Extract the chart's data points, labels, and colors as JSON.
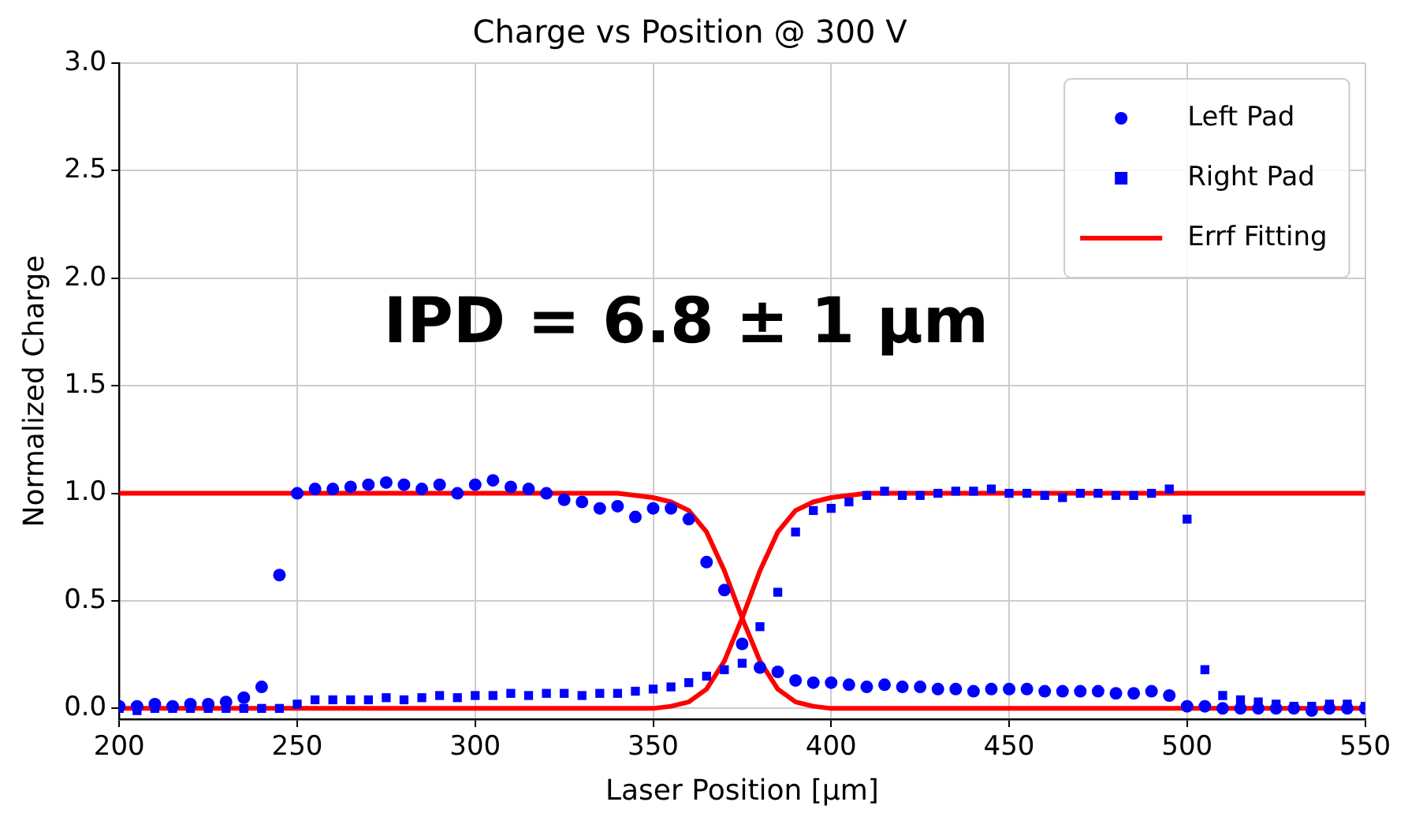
{
  "chart_data": {
    "type": "scatter",
    "title": "Charge vs Position @ 300 V",
    "xlabel": "Laser Position [µm]",
    "ylabel": "Normalized Charge",
    "x": [
      200,
      205,
      210,
      215,
      220,
      225,
      230,
      235,
      240,
      245,
      250,
      255,
      260,
      265,
      270,
      275,
      280,
      285,
      290,
      295,
      300,
      305,
      310,
      315,
      320,
      325,
      330,
      335,
      340,
      345,
      350,
      355,
      360,
      365,
      370,
      375,
      380,
      385,
      390,
      395,
      400,
      405,
      410,
      415,
      420,
      425,
      430,
      435,
      440,
      445,
      450,
      455,
      460,
      465,
      470,
      475,
      480,
      485,
      490,
      495,
      500,
      505,
      510,
      515,
      520,
      525,
      530,
      535,
      540,
      545,
      550
    ],
    "series": [
      {
        "name": "Left Pad",
        "type": "scatter",
        "marker": "circle",
        "color": "#0000ff",
        "values": [
          0.01,
          0.01,
          0.02,
          0.01,
          0.02,
          0.02,
          0.03,
          0.05,
          0.1,
          0.62,
          1.0,
          1.02,
          1.02,
          1.03,
          1.04,
          1.05,
          1.04,
          1.02,
          1.04,
          1.0,
          1.04,
          1.06,
          1.03,
          1.02,
          1.0,
          0.97,
          0.96,
          0.93,
          0.94,
          0.89,
          0.93,
          0.93,
          0.88,
          0.68,
          0.55,
          0.3,
          0.19,
          0.17,
          0.13,
          0.12,
          0.12,
          0.11,
          0.1,
          0.11,
          0.1,
          0.1,
          0.09,
          0.09,
          0.08,
          0.09,
          0.09,
          0.09,
          0.08,
          0.08,
          0.08,
          0.08,
          0.07,
          0.07,
          0.08,
          0.06,
          0.01,
          0.01,
          0.0,
          0.0,
          0.0,
          0.0,
          0.0,
          -0.01,
          0.0,
          0.0,
          0.0
        ]
      },
      {
        "name": "Right Pad",
        "type": "scatter",
        "marker": "square",
        "color": "#0000ff",
        "values": [
          0.0,
          -0.01,
          0.0,
          0.0,
          0.0,
          0.0,
          0.0,
          0.0,
          0.0,
          0.0,
          0.02,
          0.04,
          0.04,
          0.04,
          0.04,
          0.05,
          0.04,
          0.05,
          0.06,
          0.05,
          0.06,
          0.06,
          0.07,
          0.06,
          0.07,
          0.07,
          0.06,
          0.07,
          0.07,
          0.08,
          0.09,
          0.1,
          0.12,
          0.15,
          0.18,
          0.21,
          0.38,
          0.54,
          0.82,
          0.92,
          0.93,
          0.96,
          0.99,
          1.01,
          0.99,
          0.99,
          1.0,
          1.01,
          1.01,
          1.02,
          1.0,
          1.0,
          0.99,
          0.98,
          1.0,
          1.0,
          0.99,
          0.99,
          1.0,
          1.02,
          0.88,
          0.18,
          0.06,
          0.04,
          0.03,
          0.02,
          0.01,
          0.01,
          0.02,
          0.02,
          0.01
        ]
      },
      {
        "name": "Errf Fitting",
        "type": "line",
        "marker": "none",
        "color": "#ff0000",
        "x": [
          200,
          340,
          345,
          350,
          355,
          360,
          365,
          370,
          375,
          380,
          385,
          390,
          395,
          400,
          550
        ],
        "values": [
          1.0,
          1.0,
          0.99,
          0.98,
          0.96,
          0.92,
          0.82,
          0.64,
          0.42,
          0.22,
          0.09,
          0.03,
          0.01,
          0.0,
          0.0
        ]
      },
      {
        "type": "line",
        "marker": "none",
        "color": "#ff0000",
        "x": [
          200,
          350,
          355,
          360,
          365,
          370,
          375,
          380,
          385,
          390,
          395,
          400,
          405,
          410,
          550
        ],
        "values": [
          0.0,
          0.0,
          0.01,
          0.03,
          0.09,
          0.22,
          0.42,
          0.64,
          0.82,
          0.92,
          0.96,
          0.98,
          0.99,
          1.0,
          1.0
        ]
      }
    ],
    "xlim": [
      200,
      550
    ],
    "xticks": [
      200,
      250,
      300,
      350,
      400,
      450,
      500,
      550
    ],
    "ylim": [
      -0.05,
      3.0
    ],
    "yticks": [
      {
        "value": 0,
        "label": "0.0"
      },
      {
        "value": 0.5,
        "label": "0.5"
      },
      {
        "value": 1,
        "label": "1.0"
      },
      {
        "value": 1.5,
        "label": "1.5"
      },
      {
        "value": 2,
        "label": "2.0"
      },
      {
        "value": 2.5,
        "label": "2.5"
      },
      {
        "value": 3,
        "label": "3.0"
      }
    ],
    "grid": true,
    "legend": "top right",
    "annotations": [
      "IPD = 6.8 ± 1 µm"
    ]
  }
}
